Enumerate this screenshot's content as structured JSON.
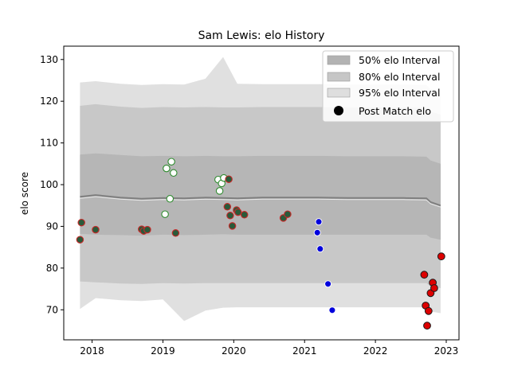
{
  "chart_data": {
    "type": "scatter",
    "title": "Sam Lewis: elo History",
    "xlabel": "",
    "ylabel": "elo score",
    "xlim": [
      2017.6,
      2023.18
    ],
    "ylim": [
      62.8,
      133.2
    ],
    "xticks": [
      2018,
      2019,
      2020,
      2021,
      2022,
      2023
    ],
    "yticks": [
      70,
      80,
      90,
      100,
      110,
      120,
      130
    ],
    "legend_position": "top-right",
    "legend": [
      {
        "label": "50% elo Interval",
        "kind": "patch",
        "color": "#b3b3b3"
      },
      {
        "label": "80% elo Interval",
        "kind": "patch",
        "color": "#c6c6c6"
      },
      {
        "label": "95% elo Interval",
        "kind": "patch",
        "color": "#dedede"
      },
      {
        "label": "Post Match elo",
        "kind": "marker",
        "color": "#000000"
      }
    ],
    "colors": {
      "band_50": "#b3b3b3",
      "band_80": "#c6c6c6",
      "band_95": "#dedede",
      "median_line": "#7f7f7f",
      "marker_edge_dark": "#1a1a1a",
      "win_face": "#ffffff",
      "win_edge": "#2e8b2e",
      "loss_face": "#2a5a3a",
      "loss_edge": "#c82828",
      "blue_face": "#0000dd",
      "blue_edge": "#ffffff",
      "red_face": "#dd0000",
      "red_edge": "#1a1a1a"
    },
    "bands": {
      "x": [
        2017.83,
        2018.05,
        2018.4,
        2018.7,
        2019.0,
        2019.3,
        2019.6,
        2019.85,
        2020.05,
        2020.4,
        2020.8,
        2021.2,
        2021.6,
        2022.0,
        2022.4,
        2022.72,
        2022.78,
        2022.92
      ],
      "median": [
        97.1,
        97.5,
        96.9,
        96.6,
        96.8,
        96.7,
        96.9,
        96.8,
        96.7,
        96.9,
        96.9,
        96.9,
        96.8,
        96.8,
        96.8,
        96.7,
        95.8,
        95.0
      ],
      "p50_low": [
        88.2,
        88.0,
        87.9,
        87.8,
        88.0,
        87.9,
        88.0,
        88.1,
        88.0,
        88.0,
        88.0,
        88.0,
        88.0,
        88.0,
        88.0,
        88.0,
        87.3,
        86.8
      ],
      "p50_high": [
        107.2,
        107.5,
        107.1,
        106.8,
        106.9,
        106.8,
        106.9,
        106.8,
        106.8,
        106.9,
        106.9,
        106.9,
        106.8,
        106.8,
        106.8,
        106.7,
        105.8,
        105.0
      ],
      "p80_low": [
        76.8,
        76.6,
        76.3,
        76.2,
        76.4,
        76.3,
        76.4,
        76.4,
        76.4,
        76.4,
        76.4,
        76.4,
        76.4,
        76.4,
        76.4,
        76.4,
        75.6,
        75.2
      ],
      "p80_high": [
        118.9,
        119.3,
        118.7,
        118.4,
        118.6,
        118.5,
        118.6,
        118.5,
        118.5,
        118.6,
        118.6,
        118.6,
        118.5,
        118.5,
        118.5,
        118.4,
        117.5,
        116.8
      ],
      "p95_low": [
        70.2,
        72.8,
        72.3,
        72.1,
        72.5,
        67.3,
        69.8,
        70.5,
        70.6,
        70.6,
        70.6,
        70.6,
        70.6,
        70.6,
        70.6,
        70.6,
        69.6,
        69.2
      ],
      "p95_high": [
        124.5,
        124.8,
        124.2,
        123.9,
        124.1,
        124.0,
        125.4,
        130.6,
        124.2,
        124.1,
        124.1,
        124.1,
        124.0,
        124.0,
        124.0,
        123.9,
        122.9,
        121.7
      ]
    },
    "series": [
      {
        "name": "Post Match elo",
        "points": [
          {
            "x": 2017.83,
            "y": 86.8,
            "type": "loss"
          },
          {
            "x": 2017.85,
            "y": 90.9,
            "type": "loss"
          },
          {
            "x": 2018.05,
            "y": 89.2,
            "type": "loss"
          },
          {
            "x": 2018.7,
            "y": 89.3,
            "type": "loss"
          },
          {
            "x": 2018.73,
            "y": 88.9,
            "type": "loss"
          },
          {
            "x": 2018.78,
            "y": 89.2,
            "type": "loss"
          },
          {
            "x": 2019.03,
            "y": 92.9,
            "type": "win"
          },
          {
            "x": 2019.05,
            "y": 103.9,
            "type": "win"
          },
          {
            "x": 2019.1,
            "y": 96.6,
            "type": "win"
          },
          {
            "x": 2019.12,
            "y": 105.5,
            "type": "win"
          },
          {
            "x": 2019.15,
            "y": 102.8,
            "type": "win"
          },
          {
            "x": 2019.18,
            "y": 88.4,
            "type": "loss"
          },
          {
            "x": 2019.78,
            "y": 101.2,
            "type": "win"
          },
          {
            "x": 2019.8,
            "y": 98.5,
            "type": "win"
          },
          {
            "x": 2019.83,
            "y": 100.3,
            "type": "win"
          },
          {
            "x": 2019.86,
            "y": 101.6,
            "type": "win"
          },
          {
            "x": 2019.91,
            "y": 94.7,
            "type": "loss"
          },
          {
            "x": 2019.93,
            "y": 101.3,
            "type": "loss"
          },
          {
            "x": 2019.95,
            "y": 92.6,
            "type": "loss"
          },
          {
            "x": 2019.98,
            "y": 90.1,
            "type": "loss"
          },
          {
            "x": 2020.04,
            "y": 93.9,
            "type": "loss"
          },
          {
            "x": 2020.06,
            "y": 93.4,
            "type": "loss"
          },
          {
            "x": 2020.15,
            "y": 92.8,
            "type": "loss"
          },
          {
            "x": 2020.7,
            "y": 92.0,
            "type": "loss"
          },
          {
            "x": 2020.76,
            "y": 92.9,
            "type": "loss"
          },
          {
            "x": 2021.18,
            "y": 88.5,
            "type": "blue"
          },
          {
            "x": 2021.2,
            "y": 91.1,
            "type": "blue"
          },
          {
            "x": 2021.22,
            "y": 84.6,
            "type": "blue"
          },
          {
            "x": 2021.33,
            "y": 76.2,
            "type": "blue"
          },
          {
            "x": 2021.39,
            "y": 69.9,
            "type": "blue"
          },
          {
            "x": 2022.69,
            "y": 78.4,
            "type": "red"
          },
          {
            "x": 2022.71,
            "y": 71.0,
            "type": "red"
          },
          {
            "x": 2022.73,
            "y": 66.2,
            "type": "red"
          },
          {
            "x": 2022.75,
            "y": 69.7,
            "type": "red"
          },
          {
            "x": 2022.78,
            "y": 74.0,
            "type": "red"
          },
          {
            "x": 2022.81,
            "y": 76.5,
            "type": "red"
          },
          {
            "x": 2022.83,
            "y": 75.2,
            "type": "red"
          },
          {
            "x": 2022.93,
            "y": 82.8,
            "type": "red"
          }
        ]
      }
    ]
  }
}
